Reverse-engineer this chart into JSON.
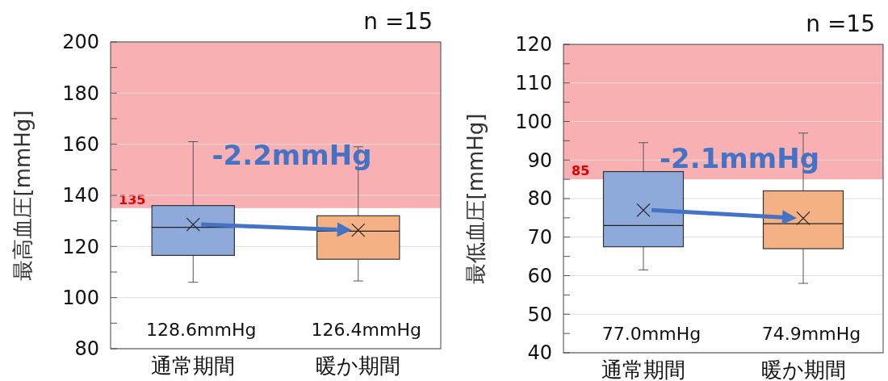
{
  "chart_data": [
    {
      "type": "box",
      "ylabel": "最高血圧[mmHg]",
      "categories": [
        "通常期間",
        "暖か期間"
      ],
      "colors": [
        "#8eaadb",
        "#f4b183"
      ],
      "boxes": [
        {
          "low": 106,
          "q1": 116.5,
          "median": 127.5,
          "q3": 136,
          "high": 161,
          "mean": 128.6
        },
        {
          "low": 106.5,
          "q1": 115,
          "median": 126,
          "q3": 132,
          "high": 159,
          "mean": 126.4
        }
      ],
      "ylim": [
        80,
        200
      ],
      "yticks": [
        80,
        100,
        120,
        140,
        160,
        180,
        200
      ],
      "grid": "y",
      "marker": "cross",
      "bands": [
        {
          "axis": "y",
          "from": 135,
          "to": 200,
          "label": "135",
          "color": "#f9b0b2"
        }
      ],
      "annotations": [
        "n =15",
        "-2.2mmHg",
        "128.6mmHg",
        "126.4mmHg"
      ]
    },
    {
      "type": "box",
      "ylabel": "最低血圧[mmHg]",
      "categories": [
        "通常期間",
        "暖か期間"
      ],
      "colors": [
        "#8eaadb",
        "#f4b183"
      ],
      "boxes": [
        {
          "low": 61.5,
          "q1": 67.5,
          "median": 73,
          "q3": 87,
          "high": 94.5,
          "mean": 77.0
        },
        {
          "low": 58,
          "q1": 67,
          "median": 73.5,
          "q3": 82,
          "high": 97,
          "mean": 74.9
        }
      ],
      "ylim": [
        40,
        120
      ],
      "yticks": [
        40,
        50,
        60,
        70,
        80,
        90,
        100,
        110,
        120
      ],
      "grid": "y",
      "marker": "cross",
      "bands": [
        {
          "axis": "y",
          "from": 85,
          "to": 120,
          "label": "85",
          "color": "#f9b0b2"
        }
      ],
      "annotations": [
        "n =15",
        "-2.1mmHg",
        "77.0mmHg",
        "74.9mmHg"
      ]
    }
  ]
}
